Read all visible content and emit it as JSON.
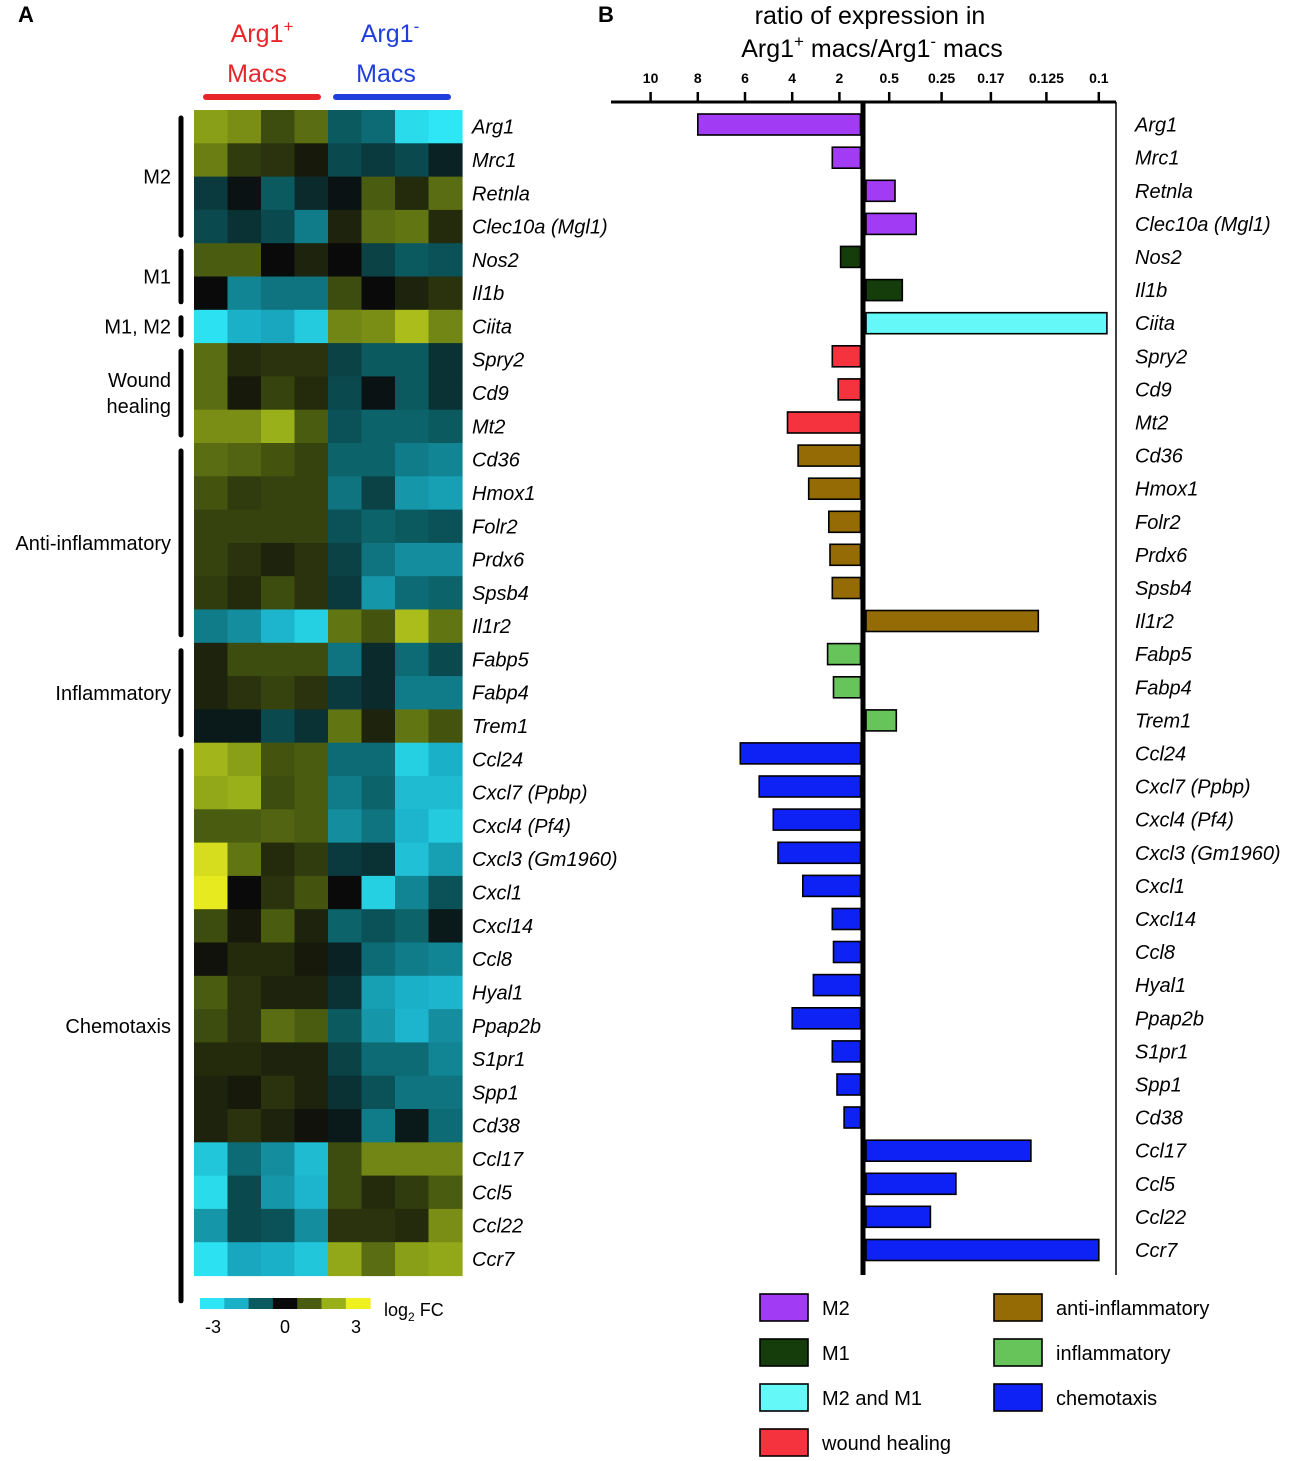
{
  "panel_a_label": "A",
  "panel_b_label": "B",
  "panel_a": {
    "group_header_pos": {
      "main": "Arg1",
      "sup": "+",
      "line2": "Macs",
      "color": "#e8262a"
    },
    "group_header_neg": {
      "main": "Arg1",
      "sup": "-",
      "line2": "Macs",
      "color": "#1f3fdc"
    },
    "categories": [
      {
        "label": [
          "M2"
        ],
        "genes": [
          0,
          3
        ]
      },
      {
        "label": [
          "M1"
        ],
        "genes": [
          4,
          5
        ]
      },
      {
        "label": [
          "M1, M2"
        ],
        "genes": [
          6,
          6
        ]
      },
      {
        "label": [
          "Wound",
          "healing"
        ],
        "genes": [
          7,
          9
        ]
      },
      {
        "label": [
          "Anti-inflammatory"
        ],
        "genes": [
          10,
          15
        ]
      },
      {
        "label": [
          "Inflammatory"
        ],
        "genes": [
          16,
          18
        ]
      },
      {
        "label": [
          "Chemotaxis"
        ],
        "genes": [
          19,
          35
        ]
      }
    ],
    "color_key": {
      "title_main": "log",
      "title_sub": "2",
      "title_rest": " FC",
      "tick_labels": [
        "-3",
        "0",
        "3"
      ],
      "colors": [
        "#2ee6f5",
        "#1ab0c8",
        "#0a5a60",
        "#0a0a0a",
        "#4a5c10",
        "#9ab01a",
        "#eef020"
      ]
    }
  },
  "genes": [
    "Arg1",
    "Mrc1",
    "Retnla",
    "Clec10a (Mgl1)",
    "Nos2",
    "Il1b",
    "Ciita",
    "Spry2",
    "Cd9",
    "Mt2",
    "Cd36",
    "Hmox1",
    "Folr2",
    "Prdx6",
    "Spsb4",
    "Il1r2",
    "Fabp5",
    "Fabp4",
    "Trem1",
    "Ccl24",
    "Cxcl7 (Ppbp)",
    "Cxcl4 (Pf4)",
    "Cxcl3 (Gm1960)",
    "Cxcl1",
    "Cxcl14",
    "Ccl8",
    "Hyal1",
    "Ppap2b",
    "S1pr1",
    "Spp1",
    "Cd38",
    "Ccl17",
    "Ccl5",
    "Ccl22",
    "Ccr7"
  ],
  "chart_data": [
    {
      "type": "heatmap",
      "title": "",
      "xlabel": "",
      "ylabel": "",
      "columns": [
        "Arg1+ Macs",
        "Arg1+ Macs",
        "Arg1+ Macs",
        "Arg1+ Macs",
        "Arg1- Macs",
        "Arg1- Macs",
        "Arg1- Macs",
        "Arg1- Macs"
      ],
      "rows": [
        "Arg1",
        "Mrc1",
        "Retnla",
        "Clec10a (Mgl1)",
        "Nos2",
        "Il1b",
        "Ciita",
        "Spry2",
        "Cd9",
        "Mt2",
        "Cd36",
        "Hmox1",
        "Folr2",
        "Prdx6",
        "Spsb4",
        "Il1r2",
        "Fabp5",
        "Fabp4",
        "Trem1",
        "Ccl24",
        "Cxcl7 (Ppbp)",
        "Cxcl4 (Pf4)",
        "Cxcl3 (Gm1960)",
        "Cxcl1",
        "Cxcl14",
        "Ccl8",
        "Hyal1",
        "Ppap2b",
        "S1pr1",
        "Spp1",
        "Cd38",
        "Ccl17",
        "Ccl5",
        "Ccl22",
        "Ccr7"
      ],
      "value_range": [
        -3,
        3
      ],
      "colorbar_label": "log2 FC",
      "values": [
        [
          1.8,
          1.6,
          0.8,
          1.2,
          -1.0,
          -1.2,
          -2.8,
          -3.0
        ],
        [
          1.4,
          0.6,
          0.5,
          0.2,
          -0.8,
          -0.6,
          -0.8,
          -0.3
        ],
        [
          -0.6,
          -0.1,
          -1.0,
          -0.4,
          -0.1,
          1.0,
          0.4,
          1.2
        ],
        [
          -0.8,
          -0.5,
          -0.8,
          -1.4,
          0.3,
          1.2,
          1.3,
          0.4
        ],
        [
          1.0,
          1.0,
          0.0,
          0.3,
          0.0,
          -0.7,
          -1.0,
          -0.9
        ],
        [
          0.0,
          -1.5,
          -1.3,
          -1.3,
          0.8,
          0.0,
          0.3,
          0.5
        ],
        [
          -2.9,
          -2.0,
          -1.9,
          -2.5,
          1.5,
          1.6,
          2.2,
          1.5
        ],
        [
          1.2,
          0.4,
          0.5,
          0.5,
          -0.7,
          -1.0,
          -1.0,
          -0.5
        ],
        [
          1.2,
          0.2,
          0.7,
          0.4,
          -0.8,
          -0.1,
          -1.0,
          -0.5
        ],
        [
          1.6,
          1.6,
          2.0,
          1.0,
          -0.9,
          -1.1,
          -1.1,
          -1.0
        ],
        [
          1.2,
          1.1,
          0.9,
          0.7,
          -1.1,
          -1.1,
          -1.4,
          -1.5
        ],
        [
          0.9,
          0.6,
          0.7,
          0.7,
          -1.3,
          -0.7,
          -1.7,
          -1.8
        ],
        [
          0.7,
          0.7,
          0.7,
          0.7,
          -0.9,
          -1.1,
          -1.0,
          -0.9
        ],
        [
          0.7,
          0.5,
          0.3,
          0.5,
          -0.7,
          -1.3,
          -1.6,
          -1.6
        ],
        [
          0.6,
          0.4,
          0.8,
          0.5,
          -0.6,
          -1.7,
          -1.2,
          -1.1
        ],
        [
          -1.4,
          -1.6,
          -2.1,
          -2.6,
          1.3,
          0.9,
          2.2,
          1.3
        ],
        [
          0.3,
          0.8,
          0.8,
          0.8,
          -1.3,
          -0.4,
          -1.2,
          -0.8
        ],
        [
          0.3,
          0.5,
          0.7,
          0.5,
          -0.6,
          -0.4,
          -1.4,
          -1.4
        ],
        [
          -0.2,
          -0.2,
          -0.8,
          -0.5,
          1.3,
          0.3,
          1.3,
          0.9
        ],
        [
          2.1,
          1.8,
          0.9,
          1.0,
          -1.2,
          -1.2,
          -2.6,
          -2.0
        ],
        [
          1.9,
          2.0,
          0.8,
          1.0,
          -1.4,
          -1.1,
          -2.2,
          -2.2
        ],
        [
          1.0,
          1.0,
          1.1,
          1.0,
          -1.6,
          -1.3,
          -2.1,
          -2.5
        ],
        [
          2.7,
          1.3,
          0.4,
          0.6,
          -0.6,
          -0.5,
          -2.3,
          -1.8
        ],
        [
          2.9,
          0.0,
          0.5,
          0.9,
          0.0,
          -2.6,
          -1.5,
          -0.9
        ],
        [
          0.8,
          0.2,
          1.0,
          0.3,
          -1.1,
          -0.9,
          -1.1,
          -0.2
        ],
        [
          0.1,
          0.4,
          0.4,
          0.2,
          -0.3,
          -1.2,
          -1.4,
          -1.5
        ],
        [
          1.0,
          0.5,
          0.3,
          0.3,
          -0.5,
          -1.8,
          -2.0,
          -2.1
        ],
        [
          0.8,
          0.5,
          1.2,
          1.0,
          -1.0,
          -1.7,
          -2.1,
          -1.6
        ],
        [
          0.4,
          0.4,
          0.3,
          0.3,
          -0.7,
          -1.2,
          -1.2,
          -1.5
        ],
        [
          0.3,
          0.2,
          0.5,
          0.3,
          -0.5,
          -0.9,
          -1.3,
          -1.3
        ],
        [
          0.3,
          0.5,
          0.3,
          0.1,
          -0.2,
          -1.4,
          -0.2,
          -1.2
        ],
        [
          -2.4,
          -1.2,
          -1.6,
          -2.2,
          0.8,
          1.5,
          1.5,
          1.5
        ],
        [
          -2.8,
          -0.8,
          -1.7,
          -2.1,
          0.8,
          0.4,
          0.6,
          1.0
        ],
        [
          -1.7,
          -0.8,
          -0.9,
          -1.6,
          0.5,
          0.5,
          0.4,
          1.6
        ],
        [
          -2.9,
          -1.9,
          -2.0,
          -2.4,
          1.9,
          1.2,
          1.8,
          1.9
        ]
      ]
    },
    {
      "type": "bar",
      "orientation": "horizontal",
      "title": "ratio of expression in Arg1+ macs/Arg1- macs",
      "title_line1": "ratio of expression in",
      "title_line2": {
        "a": "Arg1",
        "a_sup": "+",
        "b": " macs/Arg1",
        "b_sup": "-",
        "c": " macs"
      },
      "x_axis": {
        "left_ticks": [
          10,
          8,
          6,
          4,
          2
        ],
        "left_tick_labels": [
          "10",
          "8",
          "6",
          "4",
          "2"
        ],
        "right_ticks": [
          0.5,
          0.25,
          0.17,
          0.125,
          0.1
        ],
        "right_tick_labels": [
          "0.5",
          "0.25",
          "0.17",
          "0.125",
          "0.1"
        ],
        "scale": "fold-change; ratios below 1 plotted as reciprocal"
      },
      "categories": [
        "Arg1",
        "Mrc1",
        "Retnla",
        "Clec10a (Mgl1)",
        "Nos2",
        "Il1b",
        "Ciita",
        "Spry2",
        "Cd9",
        "Mt2",
        "Cd36",
        "Hmox1",
        "Folr2",
        "Prdx6",
        "Spsb4",
        "Il1r2",
        "Fabp5",
        "Fabp4",
        "Trem1",
        "Ccl24",
        "Cxcl7 (Ppbp)",
        "Cxcl4 (Pf4)",
        "Cxcl3 (Gm1960)",
        "Cxcl1",
        "Cxcl14",
        "Ccl8",
        "Hyal1",
        "Ppap2b",
        "S1pr1",
        "Spp1",
        "Cd38",
        "Ccl17",
        "Ccl5",
        "Ccl22",
        "Ccr7"
      ],
      "values": [
        8.0,
        2.3,
        0.45,
        0.33,
        1.95,
        0.4,
        0.097,
        2.3,
        2.05,
        4.2,
        3.75,
        3.3,
        2.45,
        2.4,
        2.3,
        0.13,
        2.5,
        2.25,
        0.44,
        6.2,
        5.4,
        4.8,
        4.6,
        3.55,
        2.3,
        2.25,
        3.1,
        4.0,
        2.3,
        2.1,
        1.8,
        0.135,
        0.22,
        0.28,
        0.1
      ],
      "groups": [
        "M2",
        "M2",
        "M2",
        "M2",
        "M1",
        "M1",
        "M2 and M1",
        "wound healing",
        "wound healing",
        "wound healing",
        "anti-inflammatory",
        "anti-inflammatory",
        "anti-inflammatory",
        "anti-inflammatory",
        "anti-inflammatory",
        "anti-inflammatory",
        "inflammatory",
        "inflammatory",
        "inflammatory",
        "chemotaxis",
        "chemotaxis",
        "chemotaxis",
        "chemotaxis",
        "chemotaxis",
        "chemotaxis",
        "chemotaxis",
        "chemotaxis",
        "chemotaxis",
        "chemotaxis",
        "chemotaxis",
        "chemotaxis",
        "chemotaxis",
        "chemotaxis",
        "chemotaxis",
        "chemotaxis"
      ],
      "legend": [
        {
          "label": "M2",
          "color": "#a23cf4"
        },
        {
          "label": "anti-inflammatory",
          "color": "#956b06"
        },
        {
          "label": "M1",
          "color": "#153d0c"
        },
        {
          "label": "inflammatory",
          "color": "#66c45b"
        },
        {
          "label": "M2 and M1",
          "color": "#64f8f8"
        },
        {
          "label": "chemotaxis",
          "color": "#0f22f6"
        },
        {
          "label": "wound healing",
          "color": "#f5333e"
        }
      ],
      "legend_position": "bottom"
    }
  ]
}
